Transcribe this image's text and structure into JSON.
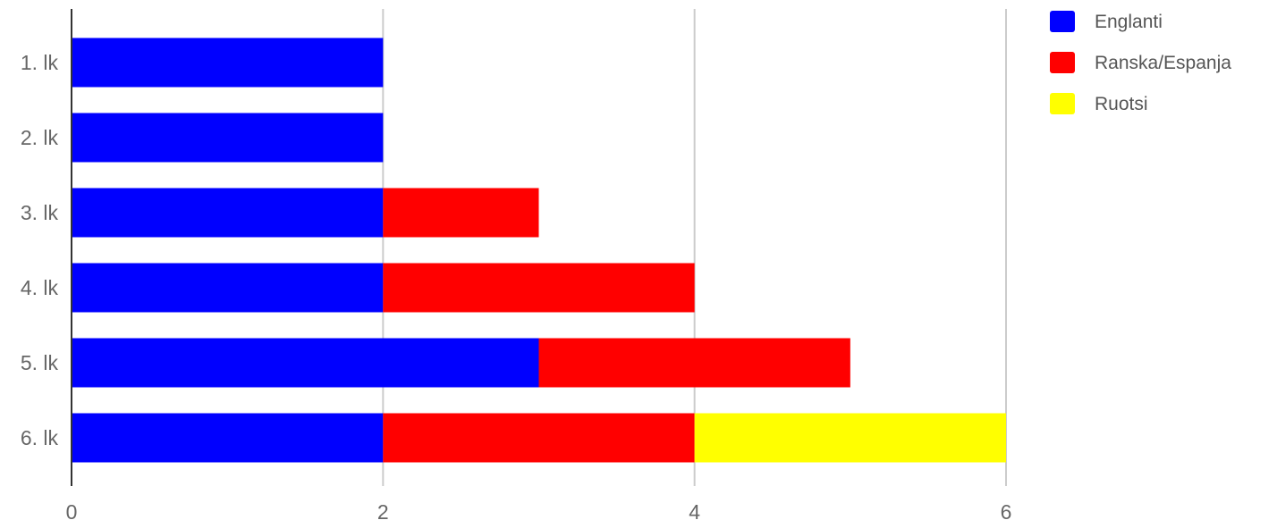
{
  "chart_data": {
    "type": "bar",
    "orientation": "horizontal",
    "stacked": true,
    "title": "",
    "xlabel": "",
    "ylabel": "",
    "categories": [
      "1. lk",
      "2. lk",
      "3. lk",
      "4. lk",
      "5. lk",
      "6. lk"
    ],
    "series": [
      {
        "name": "Englanti",
        "color": "#0000ff",
        "values": [
          2,
          2,
          2,
          2,
          3,
          2
        ]
      },
      {
        "name": "Ranska/Espanja",
        "color": "#ff0000",
        "values": [
          0,
          0,
          1,
          2,
          2,
          2
        ]
      },
      {
        "name": "Ruotsi",
        "color": "#ffff00",
        "values": [
          0,
          0,
          0,
          0,
          0,
          2
        ]
      }
    ],
    "xlim": [
      0,
      6
    ],
    "x_ticks": [
      "0",
      "2",
      "4",
      "6"
    ],
    "grid": true,
    "legend_position": "top-right"
  }
}
